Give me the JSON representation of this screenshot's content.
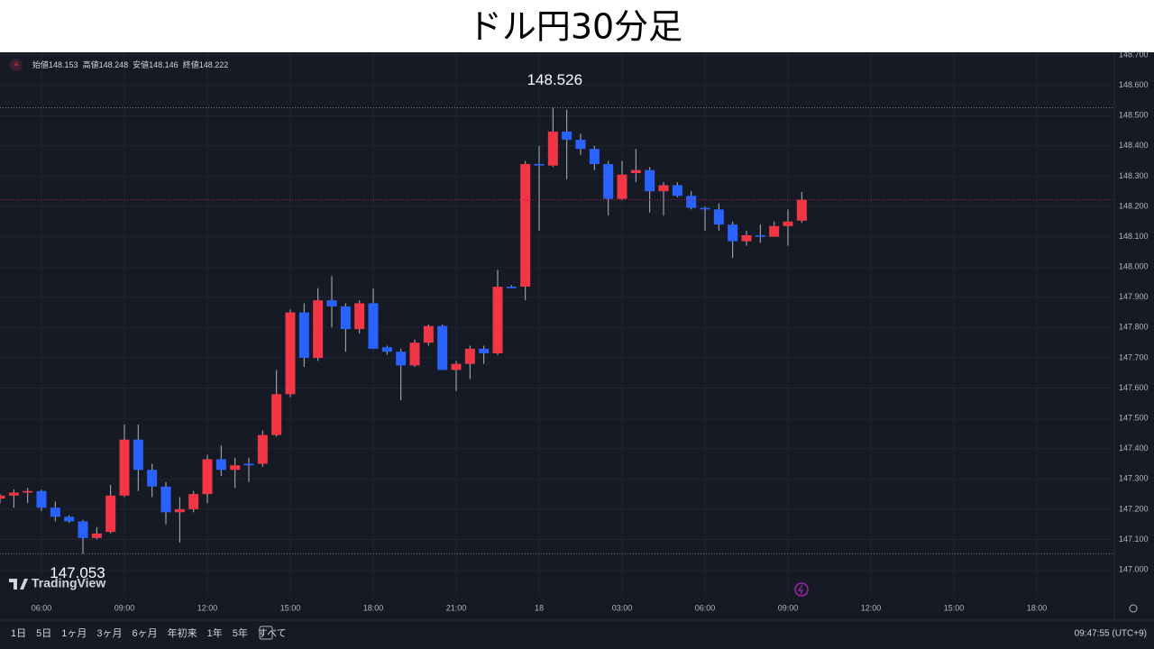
{
  "chart_data": {
    "type": "candlestick",
    "title": "ドル円30分足",
    "categories": [
      null,
      null,
      null,
      "06:00",
      null,
      null,
      null,
      null,
      null,
      "09:00",
      null,
      null,
      null,
      null,
      null,
      "12:00",
      null,
      null,
      null,
      null,
      null,
      "15:00",
      null,
      null,
      null,
      null,
      null,
      "18:00",
      null,
      null,
      null,
      null,
      null,
      "21:00",
      null,
      null,
      null,
      null,
      null,
      "18",
      null,
      null,
      null,
      null,
      null,
      "03:00",
      null,
      null,
      null,
      null,
      null,
      "06:00",
      null,
      null,
      null,
      null,
      null,
      "09:00",
      null,
      null,
      null,
      null,
      null,
      "12:00",
      null,
      null,
      null,
      null,
      null,
      "15:00",
      null,
      null,
      null,
      null,
      null,
      "18:00"
    ],
    "open": [
      147.235,
      147.245,
      147.255,
      147.26,
      147.205,
      147.175,
      147.16,
      147.105,
      147.125,
      147.245,
      147.43,
      147.33,
      147.275,
      147.19,
      147.2,
      147.25,
      147.365,
      147.33,
      147.35,
      147.35,
      147.445,
      147.58,
      147.85,
      147.7,
      147.89,
      147.87,
      147.795,
      147.88,
      147.735,
      147.72,
      147.675,
      147.75,
      147.805,
      147.66,
      147.68,
      147.73,
      147.715,
      147.935,
      147.935,
      148.34,
      148.335,
      148.447,
      148.42,
      148.39,
      148.34,
      148.225,
      148.31,
      148.32,
      148.25,
      148.27,
      148.235,
      148.195,
      148.19,
      148.14,
      148.085,
      148.105,
      148.1,
      148.135,
      148.153,
      null,
      null,
      null,
      null,
      null,
      null,
      null,
      null,
      null,
      null,
      null,
      null,
      null,
      null,
      null,
      null,
      null
    ],
    "high": [
      147.25,
      147.265,
      147.27,
      147.265,
      147.225,
      147.18,
      147.165,
      147.14,
      147.28,
      147.48,
      147.48,
      147.35,
      147.29,
      147.24,
      147.26,
      147.38,
      147.41,
      147.37,
      147.37,
      147.46,
      147.66,
      147.86,
      147.88,
      147.93,
      147.97,
      147.88,
      147.89,
      147.93,
      147.74,
      147.73,
      147.76,
      147.81,
      147.81,
      147.69,
      147.74,
      147.74,
      147.99,
      147.94,
      148.35,
      148.4,
      148.526,
      148.52,
      148.44,
      148.4,
      148.35,
      148.35,
      148.39,
      148.33,
      148.28,
      148.28,
      148.25,
      148.2,
      148.21,
      148.15,
      148.12,
      148.14,
      148.15,
      148.19,
      148.248,
      null,
      null,
      null,
      null,
      null,
      null,
      null,
      null,
      null,
      null,
      null,
      null,
      null,
      null,
      null,
      null,
      null
    ],
    "low": [
      147.22,
      147.205,
      147.22,
      147.195,
      147.16,
      147.155,
      147.053,
      147.1,
      147.12,
      147.24,
      147.26,
      147.24,
      147.15,
      147.09,
      147.19,
      147.22,
      147.31,
      147.27,
      147.29,
      147.34,
      147.44,
      147.57,
      147.67,
      147.69,
      147.8,
      147.72,
      147.78,
      147.73,
      147.71,
      147.56,
      147.67,
      147.74,
      147.66,
      147.59,
      147.63,
      147.68,
      147.71,
      147.93,
      147.89,
      148.12,
      148.33,
      148.29,
      148.37,
      148.32,
      148.17,
      148.22,
      148.28,
      148.18,
      148.17,
      148.23,
      148.19,
      148.12,
      148.12,
      148.03,
      148.07,
      148.08,
      148.1,
      148.07,
      148.146,
      null,
      null,
      null,
      null,
      null,
      null,
      null,
      null,
      null,
      null,
      null,
      null,
      null,
      null,
      null,
      null,
      null
    ],
    "close": [
      147.245,
      147.255,
      147.26,
      147.205,
      147.175,
      147.16,
      147.105,
      147.12,
      147.245,
      147.43,
      147.33,
      147.275,
      147.19,
      147.2,
      147.25,
      147.365,
      147.33,
      147.345,
      147.345,
      147.445,
      147.58,
      147.85,
      147.7,
      147.89,
      147.87,
      147.795,
      147.88,
      147.73,
      147.72,
      147.675,
      147.75,
      147.805,
      147.66,
      147.68,
      147.73,
      147.715,
      147.935,
      147.93,
      148.34,
      148.335,
      148.447,
      148.42,
      148.39,
      148.34,
      148.225,
      148.305,
      148.32,
      148.25,
      148.27,
      148.235,
      148.195,
      148.19,
      148.14,
      148.085,
      148.105,
      148.1,
      148.135,
      148.15,
      148.222,
      null,
      null,
      null,
      null,
      null,
      null,
      null,
      null,
      null,
      null,
      null,
      null,
      null,
      null,
      null,
      null,
      null
    ],
    "up_color": "#f23645",
    "down_color": "#2962ff",
    "ohlc_labels": [
      "始値",
      "高値",
      "安値",
      "終値"
    ],
    "ylim": [
      146.917,
      148.709
    ],
    "yticks": [
      {
        "value": 147.0,
        "label": "147.000"
      },
      {
        "value": 147.1,
        "label": "147.100"
      },
      {
        "value": 147.2,
        "label": "147.200"
      },
      {
        "value": 147.3,
        "label": "147.300"
      },
      {
        "value": 147.4,
        "label": "147.400"
      },
      {
        "value": 147.5,
        "label": "147.500"
      },
      {
        "value": 147.6,
        "label": "147.600"
      },
      {
        "value": 147.7,
        "label": "147.700"
      },
      {
        "value": 147.8,
        "label": "147.800"
      },
      {
        "value": 147.9,
        "label": "147.900"
      },
      {
        "value": 148.0,
        "label": "148.000"
      },
      {
        "value": 148.1,
        "label": "148.100"
      },
      {
        "value": 148.2,
        "label": "148.200"
      },
      {
        "value": 148.3,
        "label": "148.300"
      },
      {
        "value": 148.4,
        "label": "148.400"
      },
      {
        "value": 148.5,
        "label": "148.500"
      },
      {
        "value": 148.6,
        "label": "148.600"
      },
      {
        "value": 148.7,
        "label": "148.700"
      }
    ],
    "grid": true
  },
  "logo": "TradingView",
  "toolbar": {
    "ranges": [
      "1日",
      "5日",
      "1ヶ月",
      "3ヶ月",
      "6ヶ月",
      "年初来",
      "1年",
      "5年",
      "すべて"
    ],
    "time": "09:47:55 (UTC+9)"
  }
}
